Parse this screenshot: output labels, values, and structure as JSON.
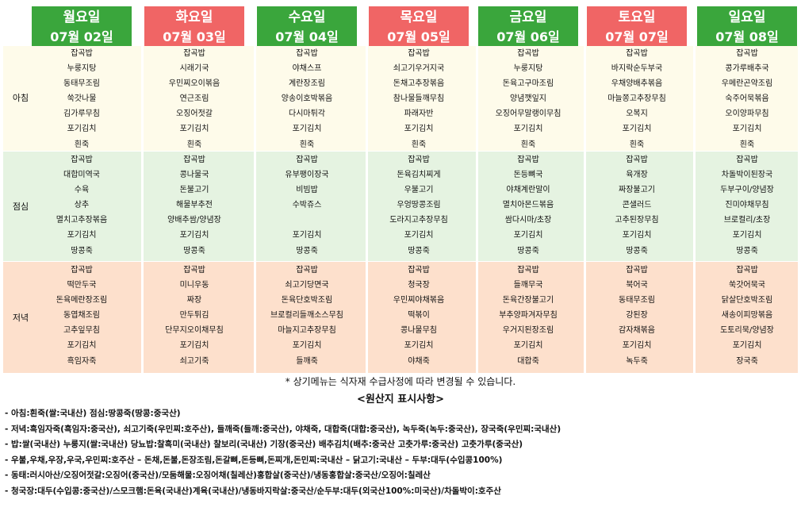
{
  "days": [
    {
      "name": "월요일",
      "date": "07월 02일",
      "color": "#3aa63c"
    },
    {
      "name": "화요일",
      "date": "07월 03일",
      "color": "#f06565"
    },
    {
      "name": "수요일",
      "date": "07월 04일",
      "color": "#3aa63c"
    },
    {
      "name": "목요일",
      "date": "07월 05일",
      "color": "#f06565"
    },
    {
      "name": "금요일",
      "date": "07월 06일",
      "color": "#3aa63c"
    },
    {
      "name": "토요일",
      "date": "07월 07일",
      "color": "#f06565"
    },
    {
      "name": "일요일",
      "date": "07월 08일",
      "color": "#3aa63c"
    }
  ],
  "meals": {
    "breakfast": {
      "label": "아침",
      "menus": [
        [
          "잡곡밥",
          "누룽지탕",
          "동태무조림",
          "쑥갓나물",
          "김가루무침",
          "포기김치",
          "흰죽"
        ],
        [
          "잡곡밥",
          "시래기국",
          "우민찌오이볶음",
          "연근조림",
          "오징어젓갈",
          "포기김치",
          "흰죽"
        ],
        [
          "잡곡밥",
          "야채스프",
          "계란장조림",
          "양송이호박볶음",
          "다시마튀각",
          "포기김치",
          "흰죽"
        ],
        [
          "잡곡밥",
          "쇠고기우거지국",
          "돈채고추장볶음",
          "참나물들깨무침",
          "파래자반",
          "포기김치",
          "흰죽"
        ],
        [
          "잡곡밥",
          "누룽지탕",
          "돈육고구마조림",
          "양념깻잎지",
          "오징어무말랭이무침",
          "포기김치",
          "흰죽"
        ],
        [
          "잡곡밥",
          "바지락순두부국",
          "우채양배추볶음",
          "마늘쫑고추장무침",
          "오복지",
          "포기김치",
          "흰죽"
        ],
        [
          "잡곡밥",
          "콩가루배추국",
          "우메란곤약조림",
          "숙주어묵볶음",
          "오이양파무침",
          "포기김치",
          "흰죽"
        ]
      ]
    },
    "lunch": {
      "label": "점심",
      "menus": [
        [
          "잡곡밥",
          "대합미역국",
          "수육",
          "상추",
          "멸치고추장볶음",
          "포기김치",
          "땅콩죽"
        ],
        [
          "잡곡밥",
          "콩나물국",
          "돈불고기",
          "해물부추전",
          "양배추쌈/양념장",
          "포기김치",
          "땅콩죽"
        ],
        [
          "잡곡밥",
          "유부팽이장국",
          "비빔밥",
          "수박쥬스",
          "",
          "포기김치",
          "땅콩죽"
        ],
        [
          "잡곡밥",
          "돈육김치찌게",
          "우불고기",
          "우엉땅콩조림",
          "도라지고추장무침",
          "포기김치",
          "땅콩죽"
        ],
        [
          "잡곡밥",
          "돈등뼈국",
          "야채계란말이",
          "멸치아몬드볶음",
          "쌈다시마/초장",
          "포기김치",
          "땅콩죽"
        ],
        [
          "잡곡밥",
          "육개장",
          "짜장불고기",
          "콘샐러드",
          "고추된장무침",
          "포기김치",
          "땅콩죽"
        ],
        [
          "잡곡밥",
          "차돌박이된장국",
          "두부구이/양념장",
          "진미야채무침",
          "브로컬리/초장",
          "포기김치",
          "땅콩죽"
        ]
      ]
    },
    "dinner": {
      "label": "저녁",
      "menus": [
        [
          "잡곡밥",
          "떡만두국",
          "돈육메란장조림",
          "동엽채조림",
          "고추잎무침",
          "포기김치",
          "흑임자죽"
        ],
        [
          "잡곡밥",
          "미니우동",
          "짜장",
          "만두튀김",
          "단무지오이채무침",
          "포기김치",
          "쇠고기죽"
        ],
        [
          "잡곡밥",
          "쇠고기당면국",
          "돈육단호박조림",
          "브로컬리들깨소스무침",
          "마늘지고추장무침",
          "포기김치",
          "들깨죽"
        ],
        [
          "잡곡밥",
          "청국장",
          "우민찌야채볶음",
          "떡볶이",
          "콩나물무침",
          "포기김치",
          "야채죽"
        ],
        [
          "잡곡밥",
          "들깨무국",
          "돈육간장불고기",
          "부추양파겨자무침",
          "우거지된장조림",
          "포기김치",
          "대합죽"
        ],
        [
          "잡곡밥",
          "북어국",
          "동태무조림",
          "강된장",
          "감자채볶음",
          "포기김치",
          "녹두죽"
        ],
        [
          "잡곡밥",
          "쑥갓어묵국",
          "닭살단호박조림",
          "새송이피망볶음",
          "도토리묵/양념장",
          "포기김치",
          "장국죽"
        ]
      ]
    }
  },
  "notice": "* 상기메뉴는 식자재 수급사정에 따라 변경될 수 있습니다.",
  "origin": {
    "title": "<원산지 표시사항>",
    "lines": [
      "- 아침:흰죽(쌀:국내산) 점심:땅콩죽(땅콩:중국산)",
      "- 저녁:흑임자죽(흑임자:중국산), 쇠고기죽(우민찌:호주산), 들깨죽(들깨:중국산), 야채죽, 대합죽(대합:중국산), 녹두죽(녹두:중국산), 장국죽(우민찌:국내산)",
      "- 밥:쌀(국내산) 누룽지(쌀:국내산) 당뇨밥:찰흑미(국내산) 찰보리(국내산) 기장(중국산) 배추김치(배추:중국산 고춧가루:중국산) 고춧가루(중국산)",
      "- 우불,우채,우장,우국,우민찌:호주산 – 돈채,돈불,돈장조림,돈갈뼈,돈등뼈,돈찌개,돈민찌:국내산 – 닭고기:국내산 – 두부:대두(수입콩100%)",
      "- 동태:러시아산/오징어젓갈:오징어(중국산)/모둠해물:오징어채(칠레산)홍합살(중국산)/냉동홍합살:중국산/오징어:칠레산",
      "- 청국장:대두(수입콩:중국산)/스모크햄:돈육(국내산)계육(국내산)/냉동바지락살:중국산/순두부:대두(외국산100%:미국산)/차돌박이:호주산"
    ]
  }
}
